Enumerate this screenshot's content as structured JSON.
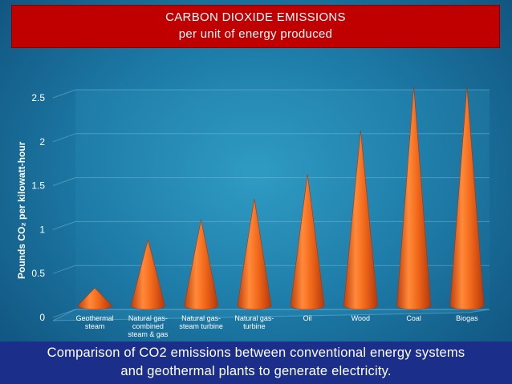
{
  "header": {
    "title_line1": "CARBON DIOXIDE EMISSIONS",
    "title_line2": "per unit of energy produced"
  },
  "caption": {
    "line1": "Comparison of CO2 emissions between conventional energy systems",
    "line2": "and geothermal plants to generate electricity."
  },
  "colors": {
    "title_bg": "#c00000",
    "caption_bg": "#1b2f8a",
    "cone": "#f26a1b",
    "background": "#1d7aa6"
  },
  "chart_data": {
    "type": "bar",
    "style": "3d-cone",
    "ylabel": "Pounds CO₂ per kilowatt-hour",
    "ylim": [
      0,
      2.5
    ],
    "yticks": [
      "0",
      "0.5",
      "1",
      "1.5",
      "2",
      "2.5"
    ],
    "grid": true,
    "categories": [
      [
        "Geothermal",
        "steam"
      ],
      [
        "Natural gas-",
        "combined",
        "steam & gas"
      ],
      [
        "Natural gas-",
        "steam turbine"
      ],
      [
        "Natural gas-",
        "turbine"
      ],
      [
        "Oil"
      ],
      [
        "Wood"
      ],
      [
        "Coal"
      ],
      [
        "Biogas"
      ]
    ],
    "values": [
      0.2,
      0.75,
      0.98,
      1.22,
      1.5,
      2.0,
      2.5,
      2.5
    ]
  }
}
